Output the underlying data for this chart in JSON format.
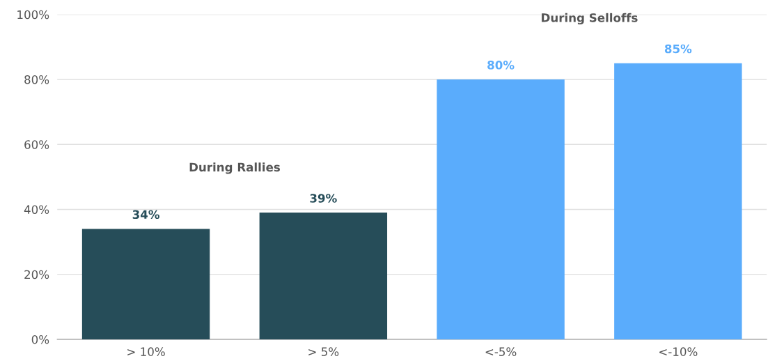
{
  "chart_data": {
    "type": "bar",
    "categories": [
      "> 10%",
      "> 5%",
      "<-5%",
      "<-10%"
    ],
    "values": [
      34,
      39,
      80,
      85
    ],
    "colors": [
      "#264d59",
      "#264d59",
      "#5aacfc",
      "#5aacfc"
    ],
    "value_labels": [
      "34%",
      "39%",
      "80%",
      "85%"
    ],
    "annotations": [
      "During Rallies",
      "During Selloffs"
    ],
    "ylim": [
      0,
      100
    ],
    "yticks": [
      {
        "value": 0,
        "label": "0%"
      },
      {
        "value": 20,
        "label": "20%"
      },
      {
        "value": 40,
        "label": "40%"
      },
      {
        "value": 60,
        "label": "60%"
      },
      {
        "value": 80,
        "label": "80%"
      },
      {
        "value": 100,
        "label": "100%"
      }
    ],
    "grid": "y"
  }
}
